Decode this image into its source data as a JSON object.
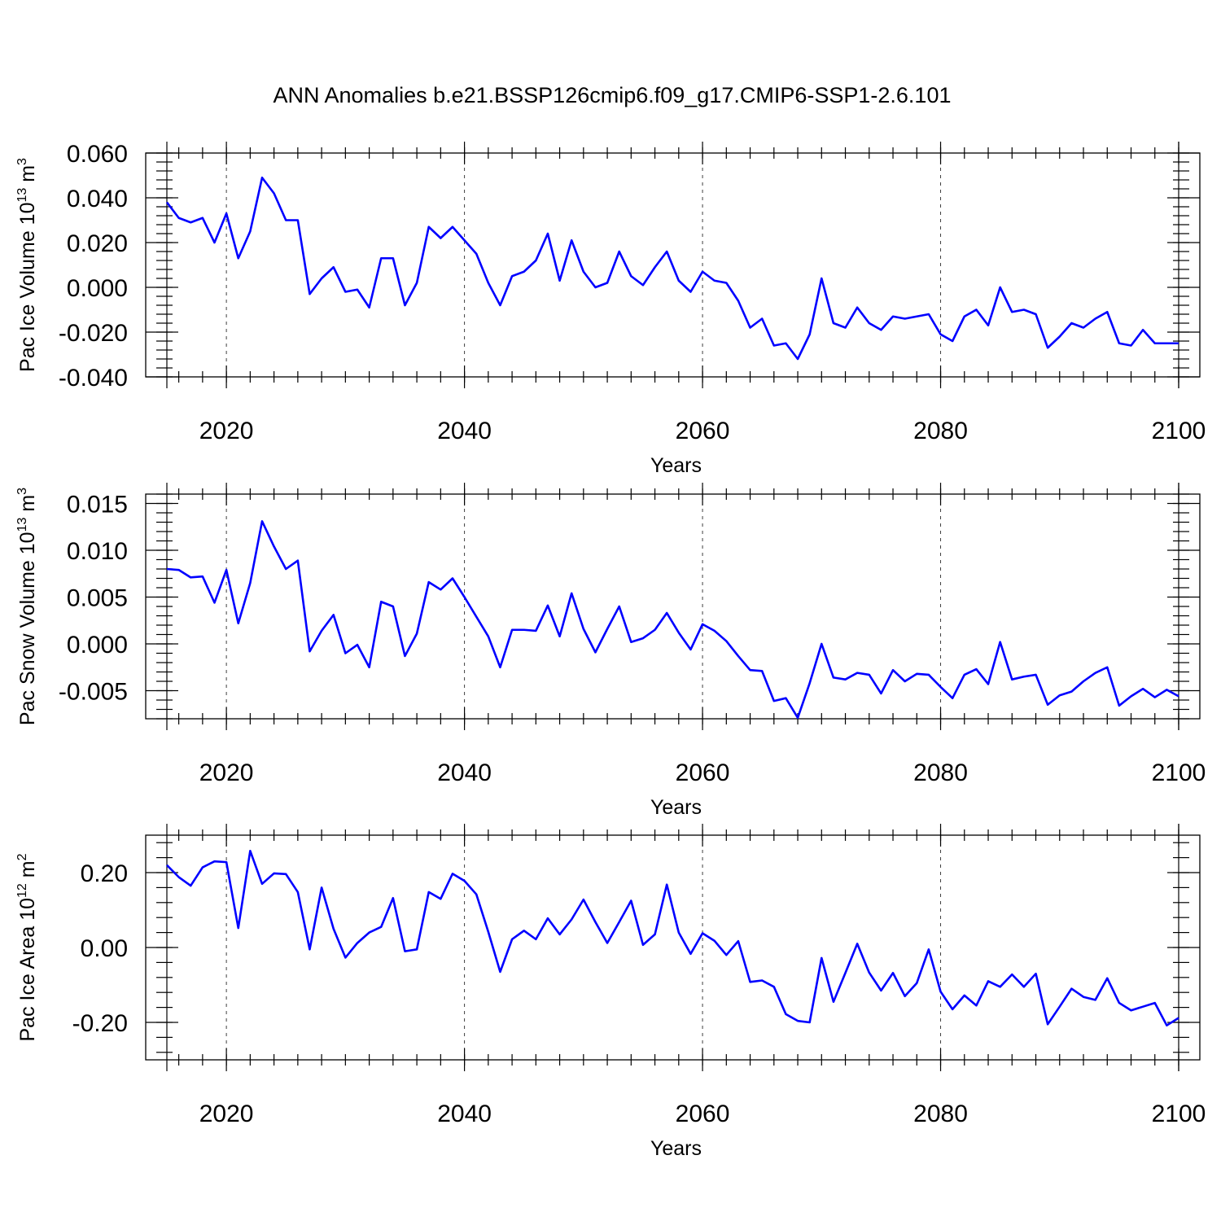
{
  "title": "ANN Anomalies b.e21.BSSP126cmip6.f09_g17.CMIP6-SSP1-2.6.101",
  "colors": {
    "series": "#0000ff",
    "axes": "#000000",
    "background": "#ffffff"
  },
  "chart_data": [
    {
      "type": "line",
      "ylabel": {
        "text": "Pac Ice Volume 10",
        "sup": "13",
        "unit": " m",
        "unit_sup": "3"
      },
      "xlabel": "Years",
      "xlim": [
        2015,
        2100
      ],
      "x_ticks": [
        "2020",
        "2040",
        "2060",
        "2080",
        "2100"
      ],
      "ylim": [
        -0.04,
        0.06
      ],
      "y_ticks": [
        "-0.040",
        "-0.020",
        "0.000",
        "0.020",
        "0.040",
        "0.060"
      ],
      "grid": "dashed vertical at major x ticks",
      "series": [
        {
          "name": "Pac Ice Volume anomaly",
          "x_start": 2015,
          "values": [
            0.038,
            0.031,
            0.029,
            0.031,
            0.02,
            0.033,
            0.013,
            0.025,
            0.049,
            0.042,
            0.03,
            0.03,
            -0.003,
            0.004,
            0.009,
            -0.002,
            -0.001,
            -0.009,
            0.013,
            0.013,
            -0.008,
            0.002,
            0.027,
            0.022,
            0.027,
            0.021,
            0.015,
            0.002,
            -0.008,
            0.005,
            0.007,
            0.012,
            0.024,
            0.003,
            0.021,
            0.007,
            0.0,
            0.002,
            0.016,
            0.005,
            0.001,
            0.009,
            0.016,
            0.003,
            -0.002,
            0.007,
            0.003,
            0.002,
            -0.006,
            -0.018,
            -0.014,
            -0.026,
            -0.025,
            -0.032,
            -0.021,
            0.004,
            -0.016,
            -0.018,
            -0.009,
            -0.016,
            -0.019,
            -0.013,
            -0.014,
            -0.013,
            -0.012,
            -0.021,
            -0.024,
            -0.013,
            -0.01,
            -0.017,
            0.0,
            -0.011,
            -0.01,
            -0.012,
            -0.027,
            -0.022,
            -0.016,
            -0.018,
            -0.014,
            -0.011,
            -0.025,
            -0.026,
            -0.019,
            -0.025,
            -0.025,
            -0.025
          ]
        }
      ]
    },
    {
      "type": "line",
      "ylabel": {
        "text": "Pac Snow Volume 10",
        "sup": "13",
        "unit": " m",
        "unit_sup": "3"
      },
      "xlabel": "Years",
      "xlim": [
        2015,
        2100
      ],
      "x_ticks": [
        "2020",
        "2040",
        "2060",
        "2080",
        "2100"
      ],
      "ylim": [
        -0.008,
        0.016
      ],
      "y_ticks": [
        "-0.005",
        "0.000",
        "0.005",
        "0.010",
        "0.015"
      ],
      "grid": "dashed vertical at major x ticks",
      "series": [
        {
          "name": "Pac Snow Volume anomaly",
          "x_start": 2015,
          "values": [
            0.008,
            0.0079,
            0.0071,
            0.0072,
            0.0044,
            0.0079,
            0.0022,
            0.0065,
            0.0131,
            0.0104,
            0.008,
            0.0089,
            -0.0008,
            0.0014,
            0.0031,
            -0.001,
            -0.0001,
            -0.0025,
            0.0045,
            0.004,
            -0.0013,
            0.0011,
            0.0066,
            0.0058,
            0.007,
            0.005,
            0.0029,
            0.0008,
            -0.0025,
            0.0015,
            0.0015,
            0.0014,
            0.0041,
            0.0008,
            0.0054,
            0.0016,
            -0.0009,
            0.0016,
            0.004,
            0.0002,
            0.0006,
            0.0015,
            0.0033,
            0.0012,
            -0.0006,
            0.0021,
            0.0014,
            0.0003,
            -0.0013,
            -0.0028,
            -0.0029,
            -0.0061,
            -0.0058,
            -0.0079,
            -0.0042,
            0.0,
            -0.0036,
            -0.0038,
            -0.0031,
            -0.0033,
            -0.0053,
            -0.0028,
            -0.004,
            -0.0032,
            -0.0033,
            -0.0046,
            -0.0058,
            -0.0033,
            -0.0027,
            -0.0043,
            0.0002,
            -0.0038,
            -0.0035,
            -0.0033,
            -0.0065,
            -0.0055,
            -0.0051,
            -0.004,
            -0.0031,
            -0.0025,
            -0.0066,
            -0.0056,
            -0.0048,
            -0.0057,
            -0.0049,
            -0.0056
          ]
        }
      ]
    },
    {
      "type": "line",
      "ylabel": {
        "text": "Pac Ice Area 10",
        "sup": "12",
        "unit": " m",
        "unit_sup": "2"
      },
      "xlabel": "Years",
      "xlim": [
        2015,
        2100
      ],
      "x_ticks": [
        "2020",
        "2040",
        "2060",
        "2080",
        "2100"
      ],
      "ylim": [
        -0.3,
        0.3
      ],
      "y_ticks": [
        "-0.20",
        "0.00",
        "0.20"
      ],
      "grid": "dashed vertical at major x ticks",
      "series": [
        {
          "name": "Pac Ice Area anomaly",
          "x_start": 2015,
          "values": [
            0.22,
            0.188,
            0.165,
            0.214,
            0.23,
            0.228,
            0.052,
            0.258,
            0.17,
            0.198,
            0.196,
            0.148,
            -0.005,
            0.16,
            0.05,
            -0.027,
            0.012,
            0.04,
            0.055,
            0.132,
            -0.01,
            -0.005,
            0.148,
            0.13,
            0.197,
            0.178,
            0.142,
            0.042,
            -0.065,
            0.022,
            0.045,
            0.022,
            0.078,
            0.035,
            0.075,
            0.128,
            0.068,
            0.012,
            0.068,
            0.125,
            0.007,
            0.035,
            0.168,
            0.04,
            -0.017,
            0.038,
            0.018,
            -0.02,
            0.017,
            -0.092,
            -0.088,
            -0.105,
            -0.178,
            -0.196,
            -0.2,
            -0.028,
            -0.145,
            -0.068,
            0.01,
            -0.067,
            -0.115,
            -0.068,
            -0.13,
            -0.095,
            -0.005,
            -0.118,
            -0.165,
            -0.128,
            -0.155,
            -0.09,
            -0.105,
            -0.072,
            -0.105,
            -0.07,
            -0.205,
            -0.158,
            -0.11,
            -0.132,
            -0.14,
            -0.082,
            -0.148,
            -0.168,
            -0.158,
            -0.148,
            -0.208,
            -0.188
          ]
        }
      ]
    }
  ]
}
